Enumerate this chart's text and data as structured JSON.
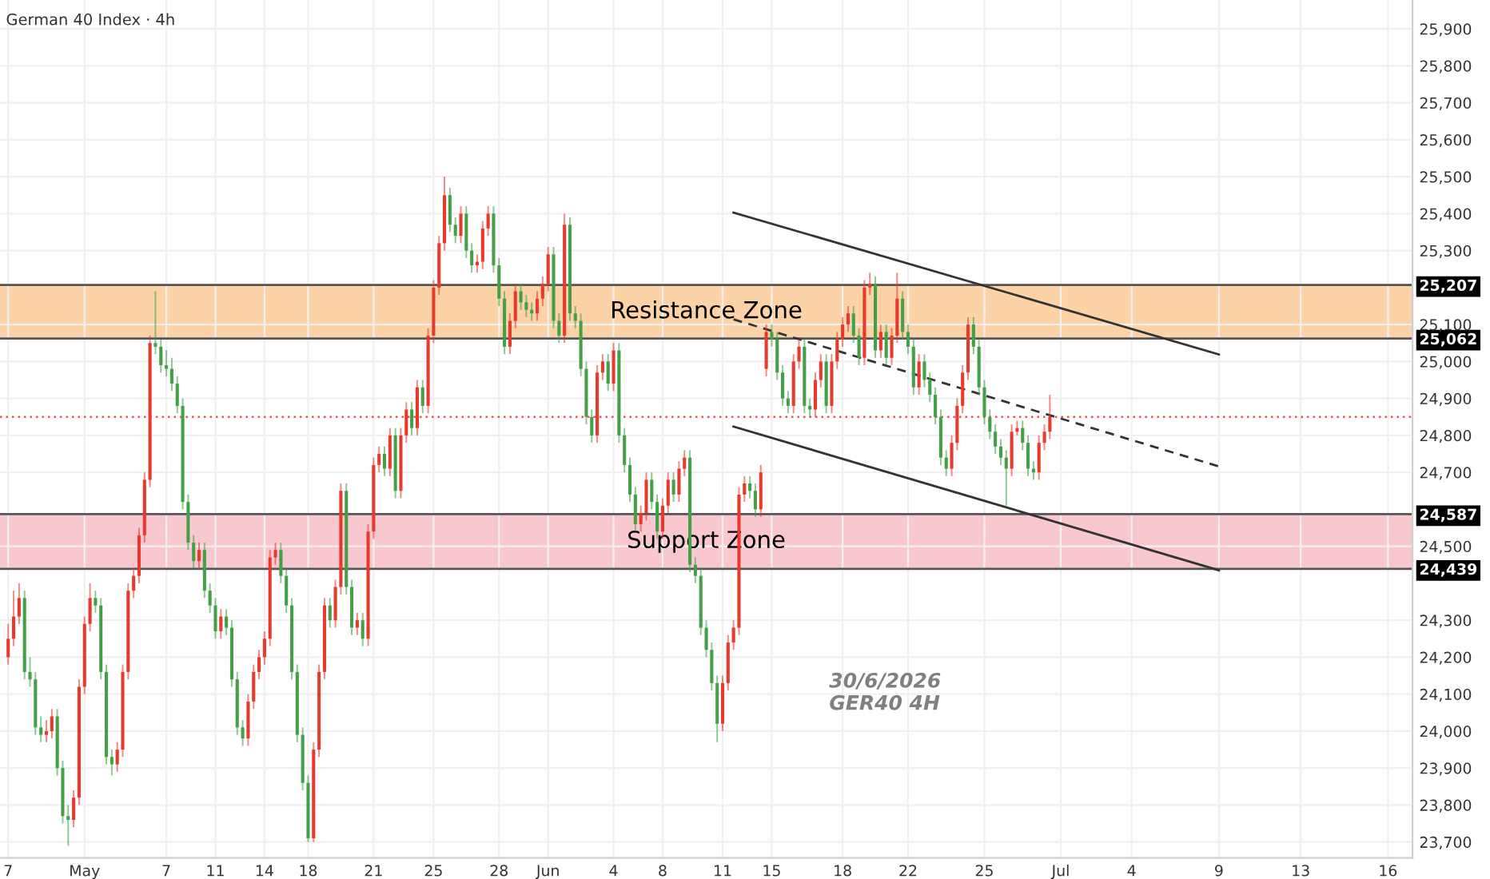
{
  "chart_data": {
    "type": "candlestick",
    "title": "German 40 Index · 4h",
    "categories": [
      "7",
      null,
      null,
      null,
      null,
      null,
      null,
      null,
      null,
      null,
      null,
      null,
      null,
      null,
      "May",
      null,
      null,
      null,
      null,
      null,
      null,
      null,
      null,
      null,
      null,
      null,
      null,
      null,
      null,
      "7",
      null,
      null,
      null,
      null,
      null,
      null,
      null,
      null,
      "11",
      null,
      null,
      null,
      null,
      null,
      null,
      null,
      null,
      "14",
      null,
      null,
      null,
      null,
      null,
      null,
      null,
      "18",
      null,
      null,
      null,
      null,
      null,
      null,
      null,
      null,
      null,
      null,
      null,
      "21",
      null,
      null,
      null,
      null,
      null,
      null,
      null,
      null,
      null,
      null,
      "25",
      null,
      null,
      null,
      null,
      null,
      null,
      null,
      null,
      null,
      null,
      null,
      "28",
      null,
      null,
      null,
      null,
      null,
      null,
      null,
      null,
      "Jun",
      null,
      null,
      null,
      null,
      null,
      null,
      null,
      null,
      null,
      null,
      null,
      "4",
      null,
      null,
      null,
      null,
      null,
      null,
      null,
      null,
      "8",
      null,
      null,
      null,
      null,
      null,
      null,
      null,
      null,
      null,
      null,
      "11",
      null,
      null,
      null,
      null,
      null,
      null,
      null,
      null,
      "15",
      null,
      null,
      null,
      null,
      null,
      null,
      null,
      null,
      null,
      null,
      null,
      null,
      "18",
      null,
      null,
      null,
      null,
      null,
      null,
      null,
      null,
      null,
      null,
      null,
      "22",
      null,
      null,
      null,
      null,
      null,
      null,
      null,
      null,
      null,
      null,
      null,
      null,
      null,
      "25",
      null,
      null,
      null,
      null,
      null,
      null,
      null,
      null,
      null,
      null,
      null,
      null,
      null,
      "Jul",
      null,
      null,
      null,
      null,
      null,
      null,
      null,
      null,
      null,
      null,
      null,
      null,
      "4",
      null,
      null,
      null,
      null,
      null,
      null,
      null,
      null,
      null,
      null,
      null,
      null,
      null,
      null,
      null,
      "9",
      null,
      null,
      null,
      null,
      null,
      null,
      null,
      null,
      null,
      null,
      null,
      null,
      null,
      null,
      "13",
      null,
      null,
      null,
      null,
      null,
      null,
      null,
      null,
      null,
      null,
      null,
      null,
      null,
      null,
      null,
      "16",
      null,
      null,
      null,
      null
    ],
    "ohlc": [
      [
        24200,
        24290,
        24180,
        24250
      ],
      [
        24250,
        24380,
        24230,
        24310
      ],
      [
        24310,
        24400,
        24290,
        24360
      ],
      [
        24360,
        24380,
        24140,
        24160
      ],
      [
        24160,
        24200,
        24120,
        24140
      ],
      [
        24140,
        24160,
        23990,
        24010
      ],
      [
        24010,
        24040,
        23970,
        23990
      ],
      [
        23990,
        24030,
        23970,
        24000
      ],
      [
        24000,
        24060,
        23980,
        24040
      ],
      [
        24040,
        24060,
        23880,
        23900
      ],
      [
        23900,
        23920,
        23750,
        23770
      ],
      [
        23770,
        23800,
        23690,
        23760
      ],
      [
        23760,
        23840,
        23740,
        23820
      ],
      [
        23820,
        24140,
        23800,
        24120
      ],
      [
        24120,
        24310,
        24100,
        24290
      ],
      [
        24290,
        24400,
        24270,
        24360
      ],
      [
        24360,
        24380,
        24320,
        24340
      ],
      [
        24340,
        24360,
        24140,
        24160
      ],
      [
        24160,
        24180,
        23910,
        23930
      ],
      [
        23930,
        23950,
        23880,
        23910
      ],
      [
        23910,
        23970,
        23890,
        23950
      ],
      [
        23950,
        24180,
        23930,
        24160
      ],
      [
        24160,
        24400,
        24140,
        24380
      ],
      [
        24380,
        24440,
        24360,
        24420
      ],
      [
        24420,
        24550,
        24400,
        24530
      ],
      [
        24530,
        24700,
        24510,
        24680
      ],
      [
        24680,
        25070,
        24660,
        25050
      ],
      [
        25050,
        25190,
        25020,
        25040
      ],
      [
        25040,
        25060,
        24970,
        24990
      ],
      [
        24990,
        25030,
        24960,
        24980
      ],
      [
        24980,
        25010,
        24920,
        24940
      ],
      [
        24940,
        24960,
        24860,
        24880
      ],
      [
        24880,
        24900,
        24600,
        24620
      ],
      [
        24620,
        24640,
        24490,
        24510
      ],
      [
        24510,
        24530,
        24440,
        24460
      ],
      [
        24460,
        24510,
        24440,
        24490
      ],
      [
        24490,
        24510,
        24360,
        24380
      ],
      [
        24380,
        24400,
        24320,
        24340
      ],
      [
        24340,
        24360,
        24250,
        24270
      ],
      [
        24270,
        24330,
        24250,
        24310
      ],
      [
        24310,
        24330,
        24260,
        24280
      ],
      [
        24280,
        24300,
        24120,
        24140
      ],
      [
        24140,
        24160,
        23990,
        24010
      ],
      [
        24010,
        24030,
        23960,
        23980
      ],
      [
        23980,
        24100,
        23960,
        24080
      ],
      [
        24080,
        24180,
        24060,
        24160
      ],
      [
        24160,
        24220,
        24140,
        24200
      ],
      [
        24200,
        24270,
        24180,
        24250
      ],
      [
        24250,
        24490,
        24230,
        24470
      ],
      [
        24470,
        24510,
        24450,
        24490
      ],
      [
        24490,
        24510,
        24400,
        24420
      ],
      [
        24420,
        24440,
        24320,
        24340
      ],
      [
        24340,
        24360,
        24140,
        24160
      ],
      [
        24160,
        24180,
        23970,
        23990
      ],
      [
        23990,
        24010,
        23840,
        23860
      ],
      [
        23860,
        23880,
        23700,
        23710
      ],
      [
        23710,
        23970,
        23700,
        23950
      ],
      [
        23950,
        24180,
        23930,
        24160
      ],
      [
        24160,
        24360,
        24140,
        24340
      ],
      [
        24340,
        24360,
        24280,
        24300
      ],
      [
        24300,
        24410,
        24280,
        24390
      ],
      [
        24390,
        24670,
        24370,
        24650
      ],
      [
        24650,
        24670,
        24370,
        24390
      ],
      [
        24390,
        24410,
        24260,
        24280
      ],
      [
        24280,
        24320,
        24260,
        24300
      ],
      [
        24300,
        24320,
        24230,
        24250
      ],
      [
        24250,
        24560,
        24230,
        24540
      ],
      [
        24540,
        24740,
        24520,
        24720
      ],
      [
        24720,
        24770,
        24700,
        24750
      ],
      [
        24750,
        24770,
        24690,
        24710
      ],
      [
        24710,
        24820,
        24690,
        24800
      ],
      [
        24800,
        24820,
        24630,
        24650
      ],
      [
        24650,
        24820,
        24630,
        24800
      ],
      [
        24800,
        24890,
        24780,
        24870
      ],
      [
        24870,
        24890,
        24800,
        24820
      ],
      [
        24820,
        24950,
        24800,
        24930
      ],
      [
        24930,
        24950,
        24860,
        24880
      ],
      [
        24880,
        25090,
        24860,
        25070
      ],
      [
        25070,
        25220,
        25050,
        25200
      ],
      [
        25200,
        25340,
        25180,
        25320
      ],
      [
        25320,
        25500,
        25300,
        25450
      ],
      [
        25450,
        25470,
        25350,
        25370
      ],
      [
        25370,
        25390,
        25320,
        25340
      ],
      [
        25340,
        25420,
        25320,
        25400
      ],
      [
        25400,
        25420,
        25280,
        25300
      ],
      [
        25300,
        25320,
        25240,
        25260
      ],
      [
        25260,
        25290,
        25240,
        25270
      ],
      [
        25270,
        25380,
        25250,
        25360
      ],
      [
        25360,
        25420,
        25340,
        25400
      ],
      [
        25400,
        25420,
        25240,
        25260
      ],
      [
        25260,
        25280,
        25150,
        25170
      ],
      [
        25170,
        25190,
        25020,
        25040
      ],
      [
        25040,
        25130,
        25020,
        25110
      ],
      [
        25110,
        25210,
        25090,
        25190
      ],
      [
        25190,
        25210,
        25140,
        25160
      ],
      [
        25160,
        25180,
        25120,
        25140
      ],
      [
        25140,
        25160,
        25110,
        25130
      ],
      [
        25130,
        25190,
        25110,
        25170
      ],
      [
        25170,
        25230,
        25150,
        25210
      ],
      [
        25210,
        25310,
        25190,
        25290
      ],
      [
        25290,
        25310,
        25090,
        25110
      ],
      [
        25110,
        25130,
        25050,
        25070
      ],
      [
        25070,
        25400,
        25050,
        25370
      ],
      [
        25370,
        25390,
        25110,
        25130
      ],
      [
        25130,
        25150,
        25090,
        25110
      ],
      [
        25110,
        25130,
        24960,
        24980
      ],
      [
        24980,
        25000,
        24830,
        24850
      ],
      [
        24850,
        24870,
        24780,
        24800
      ],
      [
        24800,
        24990,
        24780,
        24970
      ],
      [
        24970,
        25020,
        24950,
        25000
      ],
      [
        25000,
        25020,
        24920,
        24940
      ],
      [
        24940,
        25050,
        24920,
        25030
      ],
      [
        25030,
        25050,
        24780,
        24800
      ],
      [
        24800,
        24820,
        24700,
        24720
      ],
      [
        24720,
        24740,
        24620,
        24640
      ],
      [
        24640,
        24660,
        24540,
        24560
      ],
      [
        24560,
        24610,
        24540,
        24590
      ],
      [
        24590,
        24700,
        24570,
        24680
      ],
      [
        24680,
        24700,
        24600,
        24620
      ],
      [
        24620,
        24640,
        24520,
        24540
      ],
      [
        24540,
        24630,
        24520,
        24610
      ],
      [
        24610,
        24700,
        24590,
        24680
      ],
      [
        24680,
        24700,
        24620,
        24640
      ],
      [
        24640,
        24730,
        24620,
        24710
      ],
      [
        24710,
        24760,
        24690,
        24740
      ],
      [
        24740,
        24760,
        24430,
        24450
      ],
      [
        24450,
        24470,
        24400,
        24420
      ],
      [
        24420,
        24440,
        24260,
        24280
      ],
      [
        24280,
        24300,
        24200,
        24220
      ],
      [
        24220,
        24240,
        24110,
        24130
      ],
      [
        24130,
        24150,
        23970,
        24020
      ],
      [
        24020,
        24150,
        24000,
        24130
      ],
      [
        24130,
        24260,
        24110,
        24240
      ],
      [
        24240,
        24300,
        24220,
        24280
      ],
      [
        24280,
        24660,
        24260,
        24640
      ],
      [
        24640,
        24690,
        24620,
        24670
      ],
      [
        24670,
        24690,
        24630,
        24650
      ],
      [
        24650,
        24670,
        24580,
        24600
      ],
      [
        24600,
        24720,
        24580,
        24700
      ],
      [
        24980,
        25100,
        24960,
        25080
      ],
      [
        25080,
        25100,
        25040,
        25060
      ],
      [
        25060,
        25080,
        24950,
        24970
      ],
      [
        24970,
        24990,
        24880,
        24900
      ],
      [
        24900,
        24920,
        24860,
        24880
      ],
      [
        24880,
        25020,
        24860,
        25000
      ],
      [
        25000,
        25060,
        24980,
        25040
      ],
      [
        25040,
        25060,
        24860,
        24880
      ],
      [
        24880,
        24900,
        24850,
        24870
      ],
      [
        24870,
        24970,
        24850,
        24950
      ],
      [
        24950,
        25020,
        24930,
        25000
      ],
      [
        25000,
        25020,
        24860,
        24880
      ],
      [
        24880,
        25020,
        24860,
        25000
      ],
      [
        25000,
        25080,
        24980,
        25060
      ],
      [
        25060,
        25120,
        25040,
        25100
      ],
      [
        25100,
        25150,
        25080,
        25130
      ],
      [
        25130,
        25150,
        25050,
        25070
      ],
      [
        25070,
        25090,
        24990,
        25010
      ],
      [
        25010,
        25220,
        24990,
        25200
      ],
      [
        25200,
        25240,
        25180,
        25210
      ],
      [
        25210,
        25230,
        25010,
        25030
      ],
      [
        25030,
        25100,
        25010,
        25080
      ],
      [
        25080,
        25100,
        24990,
        25010
      ],
      [
        25010,
        25090,
        24990,
        25070
      ],
      [
        25070,
        25240,
        25050,
        25170
      ],
      [
        25170,
        25190,
        25060,
        25080
      ],
      [
        25080,
        25100,
        25020,
        25040
      ],
      [
        25040,
        25060,
        24910,
        24930
      ],
      [
        24930,
        25020,
        24910,
        25000
      ],
      [
        25000,
        25020,
        24930,
        24950
      ],
      [
        24950,
        24970,
        24890,
        24910
      ],
      [
        24910,
        24930,
        24830,
        24850
      ],
      [
        24850,
        24870,
        24720,
        24740
      ],
      [
        24740,
        24760,
        24690,
        24710
      ],
      [
        24710,
        24800,
        24690,
        24780
      ],
      [
        24780,
        24900,
        24760,
        24880
      ],
      [
        24880,
        24990,
        24860,
        24970
      ],
      [
        24970,
        25120,
        24950,
        25100
      ],
      [
        25100,
        25120,
        25020,
        25040
      ],
      [
        25040,
        25060,
        24910,
        24930
      ],
      [
        24930,
        24950,
        24830,
        24850
      ],
      [
        24850,
        24870,
        24790,
        24810
      ],
      [
        24810,
        24830,
        24750,
        24770
      ],
      [
        24770,
        24790,
        24720,
        24740
      ],
      [
        24740,
        24760,
        24610,
        24710
      ],
      [
        24710,
        24830,
        24690,
        24810
      ],
      [
        24810,
        24840,
        24800,
        24820
      ],
      [
        24820,
        24840,
        24760,
        24780
      ],
      [
        24780,
        24800,
        24690,
        24710
      ],
      [
        24710,
        24730,
        24680,
        24700
      ],
      [
        24700,
        24800,
        24680,
        24780
      ],
      [
        24780,
        24830,
        24760,
        24810
      ],
      [
        24810,
        24910,
        24790,
        24850
      ],
      null,
      null,
      null,
      null,
      null,
      null,
      null,
      null,
      null,
      null,
      null,
      null,
      null,
      null,
      null,
      null,
      null,
      null,
      null,
      null,
      null,
      null,
      null,
      null,
      null,
      null,
      null,
      null,
      null,
      null,
      null,
      null,
      null,
      null,
      null,
      null,
      null,
      null,
      null,
      null,
      null,
      null,
      null,
      null,
      null,
      null,
      null,
      null,
      null,
      null,
      null,
      null,
      null,
      null,
      null,
      null,
      null,
      null,
      null,
      null,
      null,
      null,
      null,
      null,
      null,
      null
    ],
    "colors": [
      "#e8392d",
      "#e8392d",
      "#e8392d",
      "#43a047",
      "#43a047",
      "#43a047",
      "#43a047",
      "#e8392d",
      "#e8392d",
      "#43a047",
      "#43a047",
      "#43a047",
      "#e8392d",
      "#e8392d",
      "#e8392d",
      "#e8392d",
      "#43a047",
      "#43a047",
      "#43a047",
      "#43a047",
      "#e8392d",
      "#e8392d",
      "#e8392d",
      "#e8392d",
      "#e8392d",
      "#e8392d",
      "#e8392d",
      "#43a047",
      "#43a047",
      "#43a047",
      "#43a047",
      "#43a047",
      "#43a047",
      "#43a047",
      "#43a047",
      "#e8392d",
      "#43a047",
      "#43a047",
      "#43a047",
      "#e8392d",
      "#43a047",
      "#43a047",
      "#43a047",
      "#43a047",
      "#e8392d",
      "#e8392d",
      "#e8392d",
      "#e8392d",
      "#e8392d",
      "#e8392d",
      "#43a047",
      "#43a047",
      "#43a047",
      "#43a047",
      "#43a047",
      "#43a047",
      "#e8392d",
      "#e8392d",
      "#e8392d",
      "#43a047",
      "#e8392d",
      "#e8392d",
      "#43a047",
      "#43a047",
      "#e8392d",
      "#43a047",
      "#e8392d",
      "#e8392d",
      "#e8392d",
      "#43a047",
      "#e8392d",
      "#43a047",
      "#e8392d",
      "#e8392d",
      "#43a047",
      "#e8392d",
      "#43a047",
      "#e8392d",
      "#e8392d",
      "#e8392d",
      "#e8392d",
      "#43a047",
      "#43a047",
      "#e8392d",
      "#43a047",
      "#43a047",
      "#e8392d",
      "#e8392d",
      "#e8392d",
      "#43a047",
      "#43a047",
      "#43a047",
      "#e8392d",
      "#e8392d",
      "#43a047",
      "#43a047",
      "#43a047",
      "#e8392d",
      "#e8392d",
      "#e8392d",
      "#43a047",
      "#43a047",
      "#e8392d",
      "#43a047",
      "#43a047",
      "#43a047",
      "#43a047",
      "#43a047",
      "#e8392d",
      "#e8392d",
      "#43a047",
      "#e8392d",
      "#43a047",
      "#43a047",
      "#43a047",
      "#43a047",
      "#e8392d",
      "#e8392d",
      "#43a047",
      "#43a047",
      "#e8392d",
      "#e8392d",
      "#43a047",
      "#e8392d",
      "#e8392d",
      "#43a047",
      "#43a047",
      "#43a047",
      "#43a047",
      "#43a047",
      "#43a047",
      "#e8392d",
      "#e8392d",
      "#e8392d",
      "#e8392d",
      "#e8392d",
      "#43a047",
      "#43a047",
      "#e8392d",
      "#e8392d",
      "#43a047",
      "#43a047",
      "#43a047",
      "#43a047",
      "#e8392d",
      "#e8392d",
      "#43a047",
      "#43a047",
      "#e8392d",
      "#e8392d",
      "#43a047",
      "#e8392d",
      "#e8392d",
      "#e8392d",
      "#e8392d",
      "#43a047",
      "#43a047",
      "#e8392d",
      "#e8392d",
      "#43a047",
      "#e8392d",
      "#43a047",
      "#e8392d",
      "#e8392d",
      "#43a047",
      "#43a047",
      "#43a047",
      "#e8392d",
      "#43a047",
      "#43a047",
      "#43a047",
      "#43a047",
      "#43a047",
      "#e8392d",
      "#e8392d",
      "#e8392d",
      "#e8392d",
      "#43a047",
      "#43a047",
      "#43a047",
      "#43a047",
      "#43a047",
      "#43a047",
      "#43a047",
      "#e8392d",
      "#e8392d",
      "#43a047",
      "#43a047",
      "#43a047",
      "#e8392d",
      "#e8392d",
      "#e8392d",
      null,
      null,
      null,
      null,
      null,
      null,
      null,
      null,
      null,
      null,
      null,
      null,
      null,
      null,
      null,
      null,
      null,
      null,
      null,
      null,
      null,
      null,
      null,
      null,
      null,
      null,
      null,
      null,
      null,
      null,
      null,
      null,
      null,
      null,
      null,
      null,
      null,
      null,
      null,
      null,
      null,
      null,
      null,
      null,
      null,
      null,
      null,
      null,
      null,
      null,
      null,
      null,
      null,
      null,
      null,
      null,
      null,
      null,
      null,
      null,
      null,
      null,
      null,
      null,
      null,
      null
    ],
    "series": [
      {
        "type": "line",
        "color": "#333333",
        "line_style": "solid",
        "values": [
          null,
          null,
          null,
          null,
          null,
          null,
          null,
          null,
          null,
          null,
          null,
          null,
          null,
          null,
          null,
          null,
          null,
          null,
          null,
          null,
          null,
          null,
          null,
          null,
          null,
          null,
          null,
          null,
          null,
          null,
          null,
          null,
          null,
          null,
          null,
          null,
          null,
          null,
          null,
          null,
          null,
          null,
          null,
          null,
          null,
          null,
          null,
          null,
          null,
          null,
          null,
          null,
          null,
          null,
          null,
          null,
          null,
          null,
          null,
          null,
          null,
          null,
          null,
          null,
          null,
          null,
          null,
          null,
          null,
          null,
          null,
          null,
          null,
          null,
          null,
          null,
          null,
          null,
          null,
          null,
          null,
          null,
          null,
          null,
          null,
          null,
          null,
          null,
          null,
          null,
          null,
          null,
          null,
          null,
          null,
          null,
          null,
          null,
          null,
          null,
          null,
          null,
          null,
          null,
          null,
          null,
          null,
          null,
          null,
          null,
          null,
          null,
          null,
          null,
          null,
          null,
          null,
          null,
          null,
          null,
          null,
          null,
          null,
          null,
          null,
          null,
          null,
          null,
          null,
          null,
          null,
          null,
          null,
          25403,
          null,
          null,
          null,
          null,
          null,
          null,
          null,
          null,
          null,
          null,
          null,
          null,
          null,
          null,
          null,
          null,
          null,
          null,
          null,
          null,
          null,
          null,
          null,
          null,
          null,
          null,
          null,
          null,
          null,
          null,
          null,
          null,
          null,
          null,
          null,
          null,
          null,
          null,
          null,
          null,
          null,
          null,
          null,
          null,
          null,
          null,
          null,
          null,
          null,
          null,
          null,
          null,
          null,
          null,
          null,
          null,
          null,
          null,
          null,
          null,
          null,
          null,
          null,
          null,
          null,
          null,
          null,
          null,
          null,
          null,
          null,
          null,
          null,
          null,
          null,
          null,
          null,
          null,
          null,
          null,
          null,
          null,
          null,
          null,
          null,
          null,
          null,
          null,
          25019,
          null,
          null,
          null,
          null,
          null,
          null,
          null,
          null,
          null,
          null,
          null,
          null,
          null,
          null,
          null,
          null,
          null,
          null,
          null,
          null,
          null,
          null,
          null,
          null,
          null,
          null,
          null,
          null,
          null,
          null,
          null,
          null,
          null,
          null,
          null
        ]
      },
      {
        "type": "line",
        "color": "#333333",
        "line_style": "dashed",
        "values": [
          null,
          null,
          null,
          null,
          null,
          null,
          null,
          null,
          null,
          null,
          null,
          null,
          null,
          null,
          null,
          null,
          null,
          null,
          null,
          null,
          null,
          null,
          null,
          null,
          null,
          null,
          null,
          null,
          null,
          null,
          null,
          null,
          null,
          null,
          null,
          null,
          null,
          null,
          null,
          null,
          null,
          null,
          null,
          null,
          null,
          null,
          null,
          null,
          null,
          null,
          null,
          null,
          null,
          null,
          null,
          null,
          null,
          null,
          null,
          null,
          null,
          null,
          null,
          null,
          null,
          null,
          null,
          null,
          null,
          null,
          null,
          null,
          null,
          null,
          null,
          null,
          null,
          null,
          null,
          null,
          null,
          null,
          null,
          null,
          null,
          null,
          null,
          null,
          null,
          null,
          null,
          null,
          null,
          null,
          null,
          null,
          null,
          null,
          null,
          null,
          null,
          null,
          null,
          null,
          null,
          null,
          null,
          null,
          null,
          null,
          null,
          null,
          null,
          null,
          null,
          null,
          null,
          null,
          null,
          null,
          null,
          null,
          null,
          null,
          null,
          null,
          null,
          null,
          null,
          null,
          null,
          null,
          null,
          25114,
          null,
          null,
          null,
          null,
          null,
          null,
          null,
          null,
          null,
          null,
          null,
          null,
          null,
          null,
          null,
          null,
          null,
          null,
          null,
          null,
          null,
          null,
          null,
          null,
          null,
          null,
          null,
          null,
          null,
          null,
          null,
          null,
          null,
          null,
          null,
          null,
          null,
          null,
          null,
          null,
          null,
          null,
          null,
          null,
          null,
          null,
          null,
          null,
          null,
          null,
          null,
          null,
          null,
          null,
          null,
          null,
          null,
          null,
          null,
          null,
          null,
          null,
          null,
          null,
          null,
          null,
          null,
          null,
          null,
          null,
          null,
          null,
          null,
          null,
          null,
          null,
          null,
          null,
          null,
          null,
          null,
          null,
          null,
          null,
          null,
          null,
          null,
          null,
          24716,
          null,
          null,
          null,
          null,
          null,
          null,
          null,
          null,
          null,
          null,
          null,
          null,
          null,
          null,
          null,
          null,
          null,
          null,
          null,
          null,
          null,
          null,
          null,
          null,
          null,
          null,
          null,
          null,
          null,
          null,
          null,
          null,
          null,
          null,
          null
        ]
      },
      {
        "type": "line",
        "color": "#333333",
        "line_style": "solid",
        "values": [
          null,
          null,
          null,
          null,
          null,
          null,
          null,
          null,
          null,
          null,
          null,
          null,
          null,
          null,
          null,
          null,
          null,
          null,
          null,
          null,
          null,
          null,
          null,
          null,
          null,
          null,
          null,
          null,
          null,
          null,
          null,
          null,
          null,
          null,
          null,
          null,
          null,
          null,
          null,
          null,
          null,
          null,
          null,
          null,
          null,
          null,
          null,
          null,
          null,
          null,
          null,
          null,
          null,
          null,
          null,
          null,
          null,
          null,
          null,
          null,
          null,
          null,
          null,
          null,
          null,
          null,
          null,
          null,
          null,
          null,
          null,
          null,
          null,
          null,
          null,
          null,
          null,
          null,
          null,
          null,
          null,
          null,
          null,
          null,
          null,
          null,
          null,
          null,
          null,
          null,
          null,
          null,
          null,
          null,
          null,
          null,
          null,
          null,
          null,
          null,
          null,
          null,
          null,
          null,
          null,
          null,
          null,
          null,
          null,
          null,
          null,
          null,
          null,
          null,
          null,
          null,
          null,
          null,
          null,
          null,
          null,
          null,
          null,
          null,
          null,
          null,
          null,
          null,
          null,
          null,
          null,
          null,
          null,
          24824,
          null,
          null,
          null,
          null,
          null,
          null,
          null,
          null,
          null,
          null,
          null,
          null,
          null,
          null,
          null,
          null,
          null,
          null,
          null,
          null,
          null,
          null,
          null,
          null,
          null,
          null,
          null,
          null,
          null,
          null,
          null,
          null,
          null,
          null,
          null,
          null,
          null,
          null,
          null,
          null,
          null,
          null,
          null,
          null,
          null,
          null,
          null,
          null,
          null,
          null,
          null,
          null,
          null,
          null,
          null,
          null,
          null,
          null,
          null,
          null,
          null,
          null,
          null,
          null,
          null,
          null,
          null,
          null,
          null,
          null,
          null,
          null,
          null,
          null,
          null,
          null,
          null,
          null,
          null,
          null,
          null,
          null,
          null,
          null,
          null,
          null,
          null,
          null,
          24435,
          null,
          null,
          null,
          null,
          null,
          null,
          null,
          null,
          null,
          null,
          null,
          null,
          null,
          null,
          null,
          null,
          null,
          null,
          null,
          null,
          null,
          null,
          null,
          null,
          null,
          null,
          null,
          null,
          null,
          null,
          null,
          null,
          null,
          null,
          null
        ]
      }
    ],
    "bands": [
      {
        "axis": "y",
        "from": 25062,
        "to": 25207,
        "label": "Resistance Zone",
        "color": "#fcd3a6"
      },
      {
        "axis": "y",
        "from": 24439,
        "to": 24587,
        "label": "Support Zone",
        "color": "#f9c8cf"
      }
    ],
    "ref_lines": [
      {
        "axis": "y",
        "value": 24850,
        "label": null,
        "color": "#ef5350",
        "line_style": "dotted"
      }
    ],
    "annotations": [
      "30/6/2026",
      "GER40 4H"
    ],
    "ylim": [
      23657,
      25978
    ],
    "yticks": [
      {
        "value": 24439,
        "label": "24,439"
      },
      {
        "value": 24587,
        "label": "24,587"
      },
      {
        "value": 25062,
        "label": "25,062"
      },
      {
        "value": 25207,
        "label": "25,207"
      },
      {
        "value": 23700,
        "label": "23,700"
      },
      {
        "value": 23800,
        "label": "23,800"
      },
      {
        "value": 23900,
        "label": "23,900"
      },
      {
        "value": 24000,
        "label": "24,000"
      },
      {
        "value": 24100,
        "label": "24,100"
      },
      {
        "value": 24200,
        "label": "24,200"
      },
      {
        "value": 24300,
        "label": "24,300"
      },
      {
        "value": 24500,
        "label": "24,500"
      },
      {
        "value": 24700,
        "label": "24,700"
      },
      {
        "value": 24800,
        "label": "24,800"
      },
      {
        "value": 24900,
        "label": "24,900"
      },
      {
        "value": 25000,
        "label": "25,000"
      },
      {
        "value": 25100,
        "label": "25,100"
      },
      {
        "value": 25300,
        "label": "25,300"
      },
      {
        "value": 25400,
        "label": "25,400"
      },
      {
        "value": 25500,
        "label": "25,500"
      },
      {
        "value": 25600,
        "label": "25,600"
      },
      {
        "value": 25700,
        "label": "25,700"
      },
      {
        "value": 25800,
        "label": "25,800"
      },
      {
        "value": 25900,
        "label": "25,900"
      }
    ],
    "grid": true
  }
}
